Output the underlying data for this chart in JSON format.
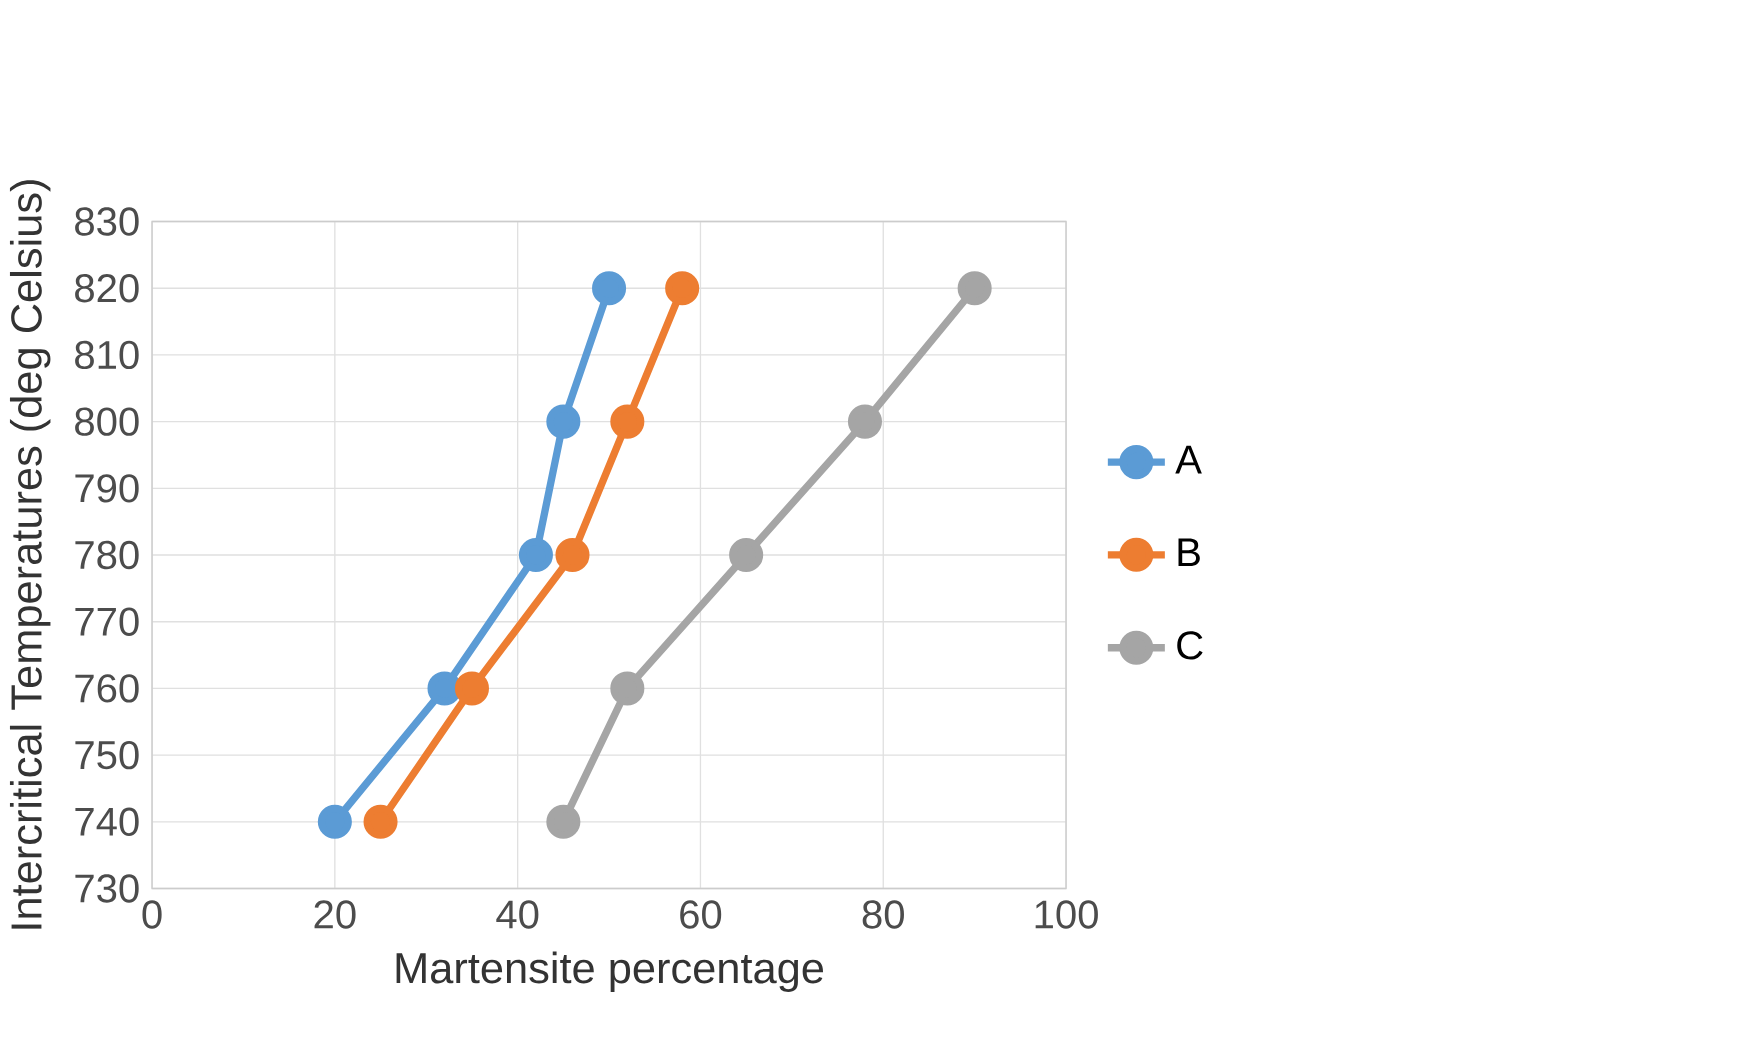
{
  "chart_data": {
    "type": "line",
    "xlabel": "Martensite percentage",
    "ylabel": "Intercritical Temperatures (deg Celsius)",
    "xlim": [
      0,
      100
    ],
    "xticks": [
      0,
      20,
      40,
      60,
      80,
      100
    ],
    "ylim": [
      730,
      830
    ],
    "yticks": [
      730,
      740,
      750,
      760,
      770,
      780,
      790,
      800,
      810,
      820,
      830
    ],
    "grid": true,
    "legend": "right",
    "marker": "circle",
    "line_style": "solid",
    "series": [
      {
        "name": "A",
        "color": "#5b9bd5",
        "x": [
          20,
          32,
          42,
          45,
          50
        ],
        "values": [
          740,
          760,
          780,
          800,
          820
        ]
      },
      {
        "name": "B",
        "color": "#ed7d31",
        "x": [
          25,
          35,
          46,
          52,
          58
        ],
        "values": [
          740,
          760,
          780,
          800,
          820
        ]
      },
      {
        "name": "C",
        "color": "#a5a5a5",
        "x": [
          45,
          52,
          65,
          78,
          90
        ],
        "values": [
          740,
          760,
          780,
          800,
          820
        ]
      }
    ]
  }
}
